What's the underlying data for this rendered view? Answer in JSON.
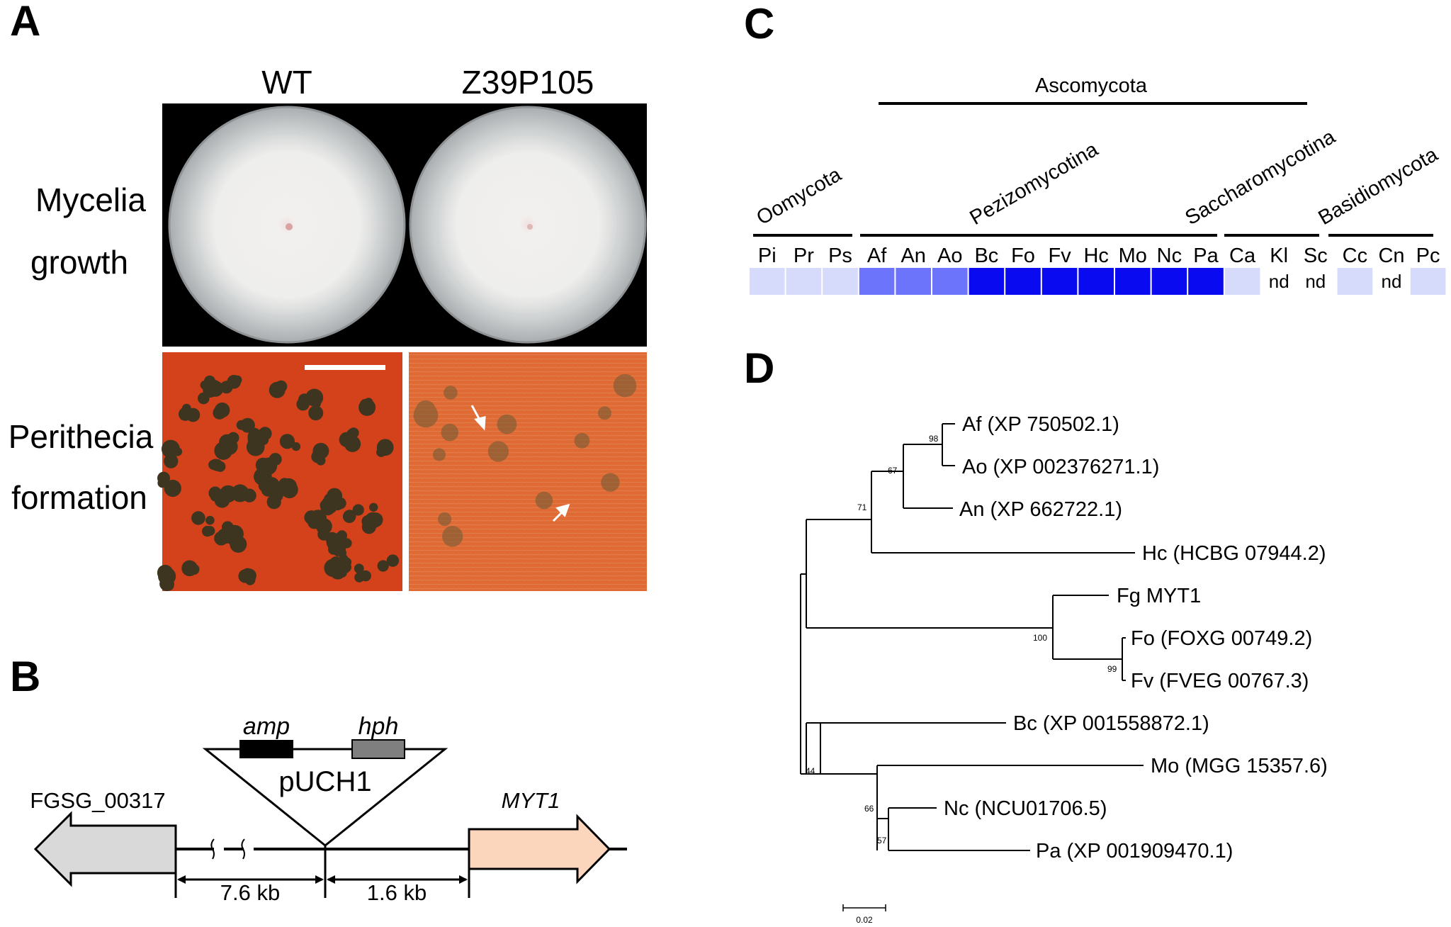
{
  "panel_a": {
    "letter": "A",
    "col_wt": "WT",
    "col_mutant": "Z39P105",
    "row1_line1": "Mycelia",
    "row1_line2": "growth",
    "row2_line1": "Perithecia",
    "row2_line2": "formation",
    "colors": {
      "background": "#000000",
      "agar": "#c9cccd",
      "medium": "#d84a1f",
      "perithecia": "#3b3520"
    }
  },
  "panel_b": {
    "letter": "B",
    "gene_left": "FGSG_00317",
    "gene_right": "MYT1",
    "plasmid": "pUCH1",
    "marker1": "amp",
    "marker2": "hph",
    "dist_left": "7.6 kb",
    "dist_right": "1.6 kb",
    "colors": {
      "gene_left": "#d9d9d9",
      "gene_right": "#fbd5bc",
      "amp": "#000000",
      "hph": "#7f7f7f"
    }
  },
  "panel_c": {
    "letter": "C",
    "group_top": "Ascomycota",
    "groups": [
      "Oomycota",
      "Pezizomycotina",
      "Saccharomycotina",
      "Basidiomycota"
    ],
    "species": [
      "Pi",
      "Pr",
      "Ps",
      "Af",
      "An",
      "Ao",
      "Bc",
      "Fo",
      "Fv",
      "Hc",
      "Mo",
      "Nc",
      "Pa",
      "Ca",
      "Kl",
      "Sc",
      "Cc",
      "Cn",
      "Pc"
    ],
    "levels": [
      1,
      1,
      1,
      2,
      2,
      2,
      3,
      3,
      3,
      3,
      3,
      3,
      3,
      1,
      null,
      null,
      1,
      null,
      1
    ],
    "nd_label": "nd",
    "level_colors": [
      "#ffffff",
      "#d6dbfb",
      "#6b74fb",
      "#0a0af0"
    ]
  },
  "panel_d": {
    "letter": "D",
    "taxa": [
      "Af (XP 750502.1)",
      "Ao (XP 002376271.1)",
      "An (XP 662722.1)",
      "Hc (HCBG 07944.2)",
      "Fg MYT1",
      "Fo (FOXG 00749.2)",
      "Fv (FVEG 00767.3)",
      "Bc (XP 001558872.1)",
      "Mo (MGG 15357.6)",
      "Nc (NCU01706.5)",
      "Pa (XP 001909470.1)"
    ],
    "bootstrap": [
      "98",
      "67",
      "71",
      "100",
      "99",
      "44",
      "66",
      "57"
    ],
    "scale_label": "0.02"
  }
}
